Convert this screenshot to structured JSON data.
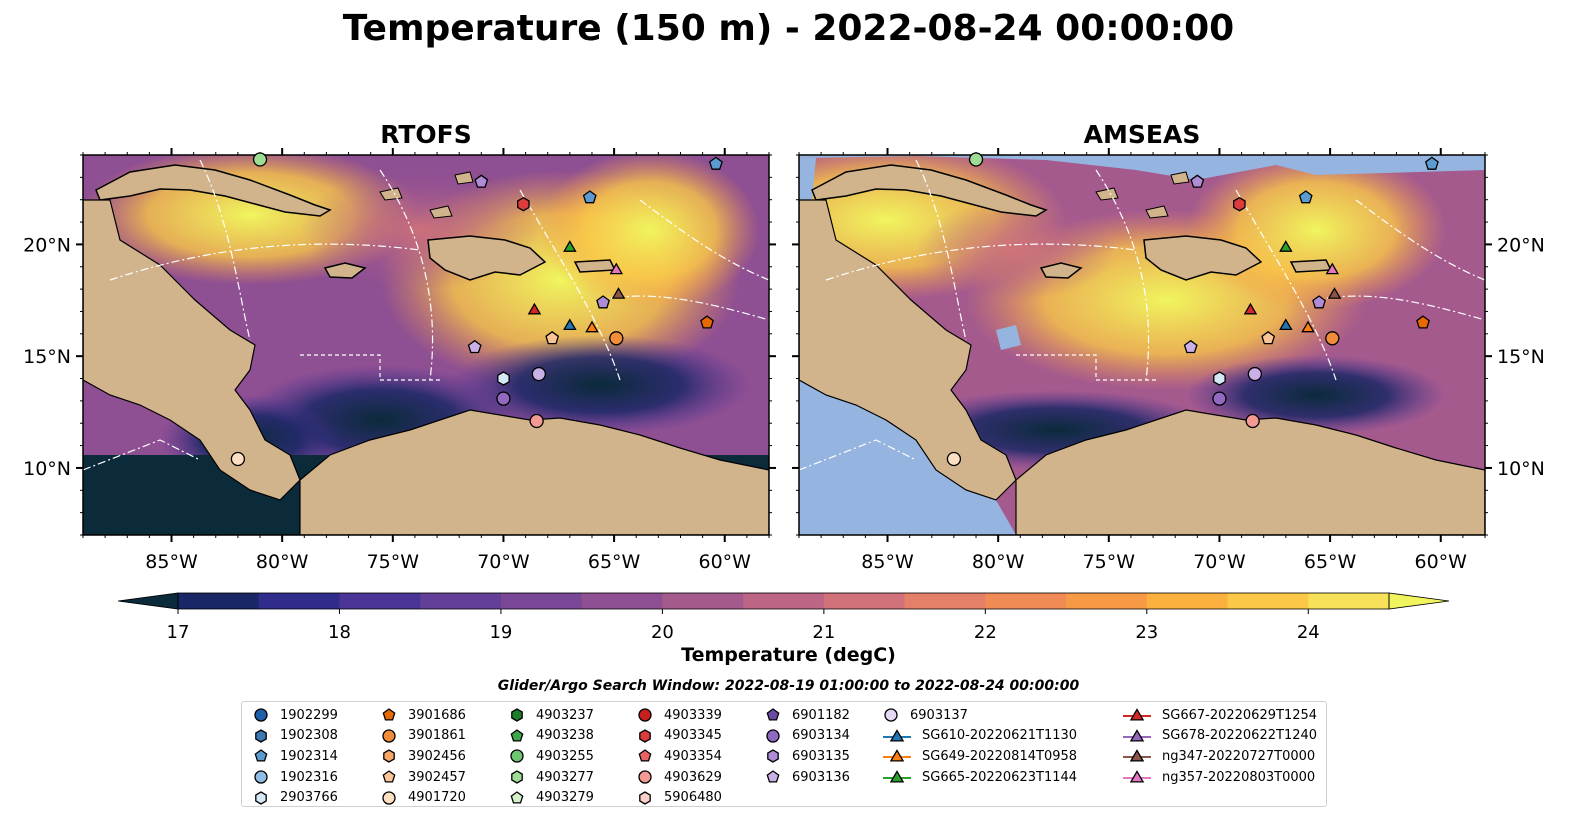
{
  "title": "Temperature (150 m) - 2022-08-24 00:00:00",
  "panels": [
    {
      "title": "RTOFS"
    },
    {
      "title": "AMSEAS"
    }
  ],
  "axes": {
    "lon_ticks": [
      "85°W",
      "80°W",
      "75°W",
      "70°W",
      "65°W",
      "60°W"
    ],
    "lon_values": [
      -85,
      -80,
      -75,
      -70,
      -65,
      -60
    ],
    "lat_ticks": [
      "20°N",
      "15°N",
      "10°N"
    ],
    "lat_values": [
      20,
      15,
      10
    ],
    "lon_range": [
      -89,
      -58
    ],
    "lat_range": [
      7,
      24
    ]
  },
  "colorbar": {
    "label": "Temperature (degC)",
    "ticks": [
      "17",
      "18",
      "19",
      "20",
      "21",
      "22",
      "23",
      "24"
    ],
    "tick_values": [
      17,
      18,
      19,
      20,
      21,
      22,
      23,
      24
    ],
    "range": [
      17,
      24.5
    ],
    "step": 0.5,
    "extend": "both",
    "colormap": [
      "#0b2a3a",
      "#1a2766",
      "#2f2c8c",
      "#4a3596",
      "#633f97",
      "#7a4696",
      "#8e4f93",
      "#a55a8e",
      "#bc6585",
      "#d1727a",
      "#e48068",
      "#f08b55",
      "#f79a45",
      "#fcb03d",
      "#fbc847",
      "#f7e05a",
      "#f0f55e"
    ]
  },
  "search_window": "Glider/Argo Search Window: 2022-08-19 01:00:00 to 2022-08-24 00:00:00",
  "legend": [
    [
      {
        "label": "1902299",
        "marker": "circle",
        "color": "#1f5fa8"
      },
      {
        "label": "1902308",
        "marker": "hexagon",
        "color": "#3a78b8"
      },
      {
        "label": "1902314",
        "marker": "pentagon",
        "color": "#5b9bd0"
      },
      {
        "label": "1902316",
        "marker": "circle",
        "color": "#8fbde3"
      },
      {
        "label": "2903766",
        "marker": "hexagon",
        "color": "#d4e8f5"
      }
    ],
    [
      {
        "label": "3901686",
        "marker": "pentagon",
        "color": "#e66a00"
      },
      {
        "label": "3901861",
        "marker": "circle",
        "color": "#f08c3a"
      },
      {
        "label": "3902456",
        "marker": "hexagon",
        "color": "#f7a766"
      },
      {
        "label": "3902457",
        "marker": "pentagon",
        "color": "#f9c496"
      },
      {
        "label": "4901720",
        "marker": "circle",
        "color": "#fde0c2"
      }
    ],
    [
      {
        "label": "4903237",
        "marker": "hexagon",
        "color": "#1e7d2b"
      },
      {
        "label": "4903238",
        "marker": "pentagon",
        "color": "#3da54a"
      },
      {
        "label": "4903255",
        "marker": "circle",
        "color": "#6cc770"
      },
      {
        "label": "4903277",
        "marker": "hexagon",
        "color": "#9edc95"
      },
      {
        "label": "4903279",
        "marker": "pentagon",
        "color": "#d3f1c7"
      }
    ],
    [
      {
        "label": "4903339",
        "marker": "circle",
        "color": "#c81e1e"
      },
      {
        "label": "4903345",
        "marker": "hexagon",
        "color": "#dc3c3c"
      },
      {
        "label": "4903354",
        "marker": "pentagon",
        "color": "#e86464"
      },
      {
        "label": "4903629",
        "marker": "circle",
        "color": "#f39a94"
      },
      {
        "label": "5906480",
        "marker": "hexagon",
        "color": "#f9cfc9"
      }
    ],
    [
      {
        "label": "6901182",
        "marker": "pentagon",
        "color": "#6a4aa3"
      },
      {
        "label": "6903134",
        "marker": "circle",
        "color": "#9169c2"
      },
      {
        "label": "6903135",
        "marker": "hexagon",
        "color": "#ae8dd6"
      },
      {
        "label": "6903136",
        "marker": "pentagon",
        "color": "#c9b1e8"
      }
    ],
    [
      {
        "label": "6903137",
        "marker": "circle",
        "color": "#e6d8f5"
      },
      {
        "label": "SG610-20220621T1130",
        "marker": "triangle-line",
        "color": "#1f77b4"
      },
      {
        "label": "SG649-20220814T0958",
        "marker": "triangle-line",
        "color": "#ff7f0e"
      },
      {
        "label": "SG665-20220623T1144",
        "marker": "triangle-line",
        "color": "#2ca02c"
      }
    ],
    [
      {
        "label": "SG667-20220629T1254",
        "marker": "triangle-line",
        "color": "#d62728"
      },
      {
        "label": "SG678-20220622T1240",
        "marker": "triangle-line",
        "color": "#9467bd"
      },
      {
        "label": "ng347-20220727T0000",
        "marker": "triangle-line",
        "color": "#8c564b"
      },
      {
        "label": "ng357-20220803T0000",
        "marker": "triangle-line",
        "color": "#e377c2"
      }
    ]
  ],
  "markers": [
    {
      "lon": -81.0,
      "lat": 23.8,
      "marker": "circle",
      "color": "#9edc95"
    },
    {
      "lon": -60.4,
      "lat": 23.6,
      "marker": "pentagon",
      "color": "#5b9bd0"
    },
    {
      "lon": -71.0,
      "lat": 22.8,
      "marker": "pentagon",
      "color": "#ae8dd6"
    },
    {
      "lon": -66.1,
      "lat": 22.1,
      "marker": "pentagon",
      "color": "#5b9bd0"
    },
    {
      "lon": -69.1,
      "lat": 21.8,
      "marker": "hexagon",
      "color": "#dc3c3c"
    },
    {
      "lon": -67.0,
      "lat": 19.9,
      "marker": "triangle",
      "color": "#2ca02c"
    },
    {
      "lon": -64.9,
      "lat": 18.9,
      "marker": "triangle",
      "color": "#e377c2"
    },
    {
      "lon": -64.8,
      "lat": 17.8,
      "marker": "triangle",
      "color": "#8c564b"
    },
    {
      "lon": -65.5,
      "lat": 17.4,
      "marker": "pentagon",
      "color": "#ae8dd6"
    },
    {
      "lon": -68.6,
      "lat": 17.1,
      "marker": "triangle",
      "color": "#d62728"
    },
    {
      "lon": -60.8,
      "lat": 16.5,
      "marker": "pentagon",
      "color": "#e66a00"
    },
    {
      "lon": -67.0,
      "lat": 16.4,
      "marker": "triangle",
      "color": "#1f77b4"
    },
    {
      "lon": -66.0,
      "lat": 16.3,
      "marker": "triangle",
      "color": "#ff7f0e"
    },
    {
      "lon": -64.9,
      "lat": 15.8,
      "marker": "circle",
      "color": "#f08c3a"
    },
    {
      "lon": -67.8,
      "lat": 15.8,
      "marker": "pentagon",
      "color": "#f9c496"
    },
    {
      "lon": -71.3,
      "lat": 15.4,
      "marker": "pentagon",
      "color": "#c9b1e8"
    },
    {
      "lon": -68.4,
      "lat": 14.2,
      "marker": "circle",
      "color": "#c9b1e8"
    },
    {
      "lon": -70.0,
      "lat": 14.0,
      "marker": "hexagon",
      "color": "#d4e8f5"
    },
    {
      "lon": -70.0,
      "lat": 13.1,
      "marker": "circle",
      "color": "#9169c2"
    },
    {
      "lon": -68.5,
      "lat": 12.1,
      "marker": "circle",
      "color": "#f39a94"
    },
    {
      "lon": -82.0,
      "lat": 10.4,
      "marker": "circle",
      "color": "#fde0c2"
    }
  ]
}
